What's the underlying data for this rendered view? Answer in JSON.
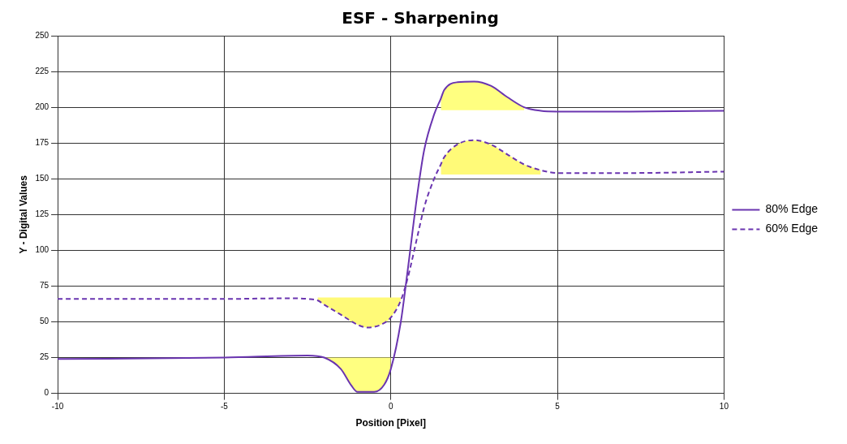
{
  "chart_data": {
    "type": "line",
    "title": "ESF - Sharpening",
    "xlabel": "Position [Pixel]",
    "ylabel": "Y - Digital Values",
    "xlim": [
      -10,
      10
    ],
    "xticks": [
      -10,
      -5,
      0,
      5,
      10
    ],
    "ylim": [
      0,
      250
    ],
    "yticks": [
      0,
      25,
      50,
      75,
      100,
      125,
      150,
      175,
      200,
      225,
      250
    ],
    "grid": true,
    "legend": "right",
    "marker": "none",
    "series": [
      {
        "name": "80% Edge",
        "color": "#6a35b0",
        "line_style": "solid",
        "x": [
          -10,
          -5,
          -2.5,
          -2,
          -1.5,
          -1.2,
          -1,
          -0.5,
          -0.2,
          0,
          0.3,
          0.5,
          0.8,
          1,
          1.3,
          1.5,
          1.6,
          2,
          2.5,
          3,
          3.5,
          4,
          4.5,
          5,
          7,
          10
        ],
        "values": [
          24,
          25,
          26.5,
          25,
          17,
          6,
          1,
          1,
          6,
          17,
          50,
          85,
          140,
          170,
          195,
          206,
          212,
          217.5,
          218,
          215,
          207,
          200,
          197.5,
          197,
          197,
          197.5
        ],
        "lower": [
          null,
          null,
          null,
          25,
          17,
          6,
          1,
          1,
          6,
          17,
          null,
          null,
          null,
          null,
          null,
          198,
          198,
          198,
          198,
          198,
          198,
          198,
          null,
          null,
          null,
          null
        ],
        "upper": [
          null,
          null,
          null,
          25,
          25,
          25,
          25,
          25,
          25,
          25,
          null,
          null,
          null,
          null,
          null,
          206,
          212,
          217.5,
          218,
          215,
          207,
          200,
          null,
          null,
          null,
          null
        ]
      },
      {
        "name": "60% Edge",
        "color": "#6a35b0",
        "line_style": "dashed",
        "x": [
          -10,
          -5,
          -3,
          -2.5,
          -2.2,
          -2,
          -1.5,
          -1,
          -0.7,
          -0.3,
          0,
          0.3,
          0.5,
          0.8,
          1,
          1.3,
          1.5,
          1.6,
          2,
          2.5,
          3,
          3.5,
          4,
          4.5,
          5,
          7,
          10
        ],
        "values": [
          66,
          66,
          66.5,
          66,
          65,
          62,
          55,
          48,
          46,
          48,
          53,
          65,
          80,
          110,
          130,
          150,
          160,
          165,
          174,
          177,
          174,
          167,
          160,
          156,
          154,
          154,
          155
        ],
        "lower": [
          null,
          null,
          null,
          null,
          65,
          62,
          55,
          48,
          46,
          48,
          53,
          65,
          null,
          null,
          null,
          null,
          153,
          153,
          153,
          153,
          153,
          153,
          153,
          153,
          null,
          null,
          null
        ],
        "upper": [
          null,
          null,
          null,
          null,
          67,
          67,
          67,
          67,
          67,
          67,
          67,
          67,
          null,
          null,
          null,
          null,
          160,
          165,
          174,
          177,
          174,
          167,
          160,
          156,
          null,
          null,
          null
        ]
      }
    ]
  }
}
